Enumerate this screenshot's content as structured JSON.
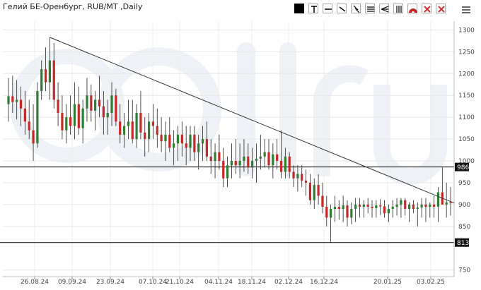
{
  "title": "Гелий БЕ-Оренбург, RUB/MT ,Daily",
  "toolbar": {
    "tools": [
      {
        "name": "color-swatch-tool"
      },
      {
        "name": "text-tool"
      },
      {
        "name": "horizontal-line-tool"
      },
      {
        "name": "trend-line-tool"
      },
      {
        "name": "ray-tool"
      },
      {
        "name": "channel-tool"
      },
      {
        "name": "fan-tool"
      },
      {
        "name": "grid-tool"
      },
      {
        "name": "arc-tool"
      },
      {
        "name": "delete-selected-tool"
      },
      {
        "name": "delete-all-tool"
      }
    ],
    "menu_icon": "hamburger-menu-icon"
  },
  "watermark": "oil.ru",
  "colors": {
    "bull": "#2e7d32",
    "bear": "#c62828",
    "wick": "#222222",
    "label_bg": "#111111"
  },
  "chart_data": {
    "type": "candlestick",
    "title": "Гелий БЕ-Оренбург, RUB/MT ,Daily",
    "ylim": [
      735,
      1320
    ],
    "y_ticks": [
      1300,
      1250,
      1200,
      1150,
      1100,
      1050,
      1000,
      950,
      900,
      850,
      750
    ],
    "x_ticks": [
      "26.08.24",
      "09.09.24",
      "23.09.24",
      "07.10.24",
      "21.10.24",
      "04.11.24",
      "18.11.24",
      "02.12.24",
      "16.12.24",
      "20.01.25",
      "03.02.25"
    ],
    "price_labels": [
      {
        "value": 986,
        "text": "986"
      },
      {
        "value": 813,
        "text": "813"
      }
    ],
    "trendline": {
      "from": {
        "candle": 10,
        "price": 1283
      },
      "to": {
        "candle": 108,
        "price": 903
      }
    },
    "candles": [
      {
        "o": 1130,
        "h": 1190,
        "l": 1090,
        "c": 1148
      },
      {
        "o": 1148,
        "h": 1195,
        "l": 1110,
        "c": 1135
      },
      {
        "o": 1135,
        "h": 1185,
        "l": 1095,
        "c": 1140
      },
      {
        "o": 1140,
        "h": 1170,
        "l": 1080,
        "c": 1120
      },
      {
        "o": 1120,
        "h": 1160,
        "l": 1060,
        "c": 1090
      },
      {
        "o": 1090,
        "h": 1140,
        "l": 1050,
        "c": 1070
      },
      {
        "o": 1070,
        "h": 1130,
        "l": 1000,
        "c": 1040
      },
      {
        "o": 1040,
        "h": 1180,
        "l": 1030,
        "c": 1160
      },
      {
        "o": 1160,
        "h": 1230,
        "l": 1140,
        "c": 1210
      },
      {
        "o": 1210,
        "h": 1260,
        "l": 1160,
        "c": 1180
      },
      {
        "o": 1180,
        "h": 1283,
        "l": 1140,
        "c": 1230
      },
      {
        "o": 1230,
        "h": 1270,
        "l": 1120,
        "c": 1140
      },
      {
        "o": 1140,
        "h": 1180,
        "l": 1080,
        "c": 1110
      },
      {
        "o": 1110,
        "h": 1150,
        "l": 1050,
        "c": 1070
      },
      {
        "o": 1070,
        "h": 1130,
        "l": 1040,
        "c": 1100
      },
      {
        "o": 1100,
        "h": 1150,
        "l": 1060,
        "c": 1080
      },
      {
        "o": 1080,
        "h": 1180,
        "l": 1050,
        "c": 1130
      },
      {
        "o": 1130,
        "h": 1170,
        "l": 1060,
        "c": 1075
      },
      {
        "o": 1075,
        "h": 1140,
        "l": 1040,
        "c": 1120
      },
      {
        "o": 1120,
        "h": 1190,
        "l": 1090,
        "c": 1150
      },
      {
        "o": 1150,
        "h": 1175,
        "l": 1090,
        "c": 1115
      },
      {
        "o": 1115,
        "h": 1160,
        "l": 1070,
        "c": 1140
      },
      {
        "o": 1140,
        "h": 1195,
        "l": 1100,
        "c": 1125
      },
      {
        "o": 1125,
        "h": 1160,
        "l": 1060,
        "c": 1100
      },
      {
        "o": 1100,
        "h": 1140,
        "l": 1060,
        "c": 1110
      },
      {
        "o": 1110,
        "h": 1180,
        "l": 1080,
        "c": 1150
      },
      {
        "o": 1150,
        "h": 1165,
        "l": 1080,
        "c": 1090
      },
      {
        "o": 1090,
        "h": 1130,
        "l": 1040,
        "c": 1060
      },
      {
        "o": 1060,
        "h": 1110,
        "l": 1030,
        "c": 1080
      },
      {
        "o": 1080,
        "h": 1140,
        "l": 1050,
        "c": 1090
      },
      {
        "o": 1090,
        "h": 1140,
        "l": 1040,
        "c": 1050
      },
      {
        "o": 1050,
        "h": 1130,
        "l": 1030,
        "c": 1110
      },
      {
        "o": 1110,
        "h": 1160,
        "l": 1050,
        "c": 1065
      },
      {
        "o": 1065,
        "h": 1100,
        "l": 1010,
        "c": 1050
      },
      {
        "o": 1050,
        "h": 1110,
        "l": 1020,
        "c": 1090
      },
      {
        "o": 1090,
        "h": 1130,
        "l": 1050,
        "c": 1080
      },
      {
        "o": 1080,
        "h": 1120,
        "l": 1030,
        "c": 1060
      },
      {
        "o": 1060,
        "h": 1100,
        "l": 1020,
        "c": 1045
      },
      {
        "o": 1045,
        "h": 1090,
        "l": 1000,
        "c": 1060
      },
      {
        "o": 1060,
        "h": 1100,
        "l": 1020,
        "c": 1030
      },
      {
        "o": 1030,
        "h": 1070,
        "l": 990,
        "c": 1040
      },
      {
        "o": 1040,
        "h": 1080,
        "l": 1000,
        "c": 1060
      },
      {
        "o": 1060,
        "h": 1090,
        "l": 1010,
        "c": 1040
      },
      {
        "o": 1040,
        "h": 1080,
        "l": 990,
        "c": 1030
      },
      {
        "o": 1030,
        "h": 1080,
        "l": 1000,
        "c": 1060
      },
      {
        "o": 1060,
        "h": 1080,
        "l": 1000,
        "c": 1020
      },
      {
        "o": 1020,
        "h": 1060,
        "l": 980,
        "c": 1040
      },
      {
        "o": 1040,
        "h": 1080,
        "l": 1000,
        "c": 1050
      },
      {
        "o": 1050,
        "h": 1090,
        "l": 1000,
        "c": 1010
      },
      {
        "o": 1010,
        "h": 1050,
        "l": 970,
        "c": 1000
      },
      {
        "o": 1000,
        "h": 1040,
        "l": 960,
        "c": 1020
      },
      {
        "o": 1020,
        "h": 1060,
        "l": 980,
        "c": 1000
      },
      {
        "o": 1000,
        "h": 1030,
        "l": 940,
        "c": 960
      },
      {
        "o": 960,
        "h": 1010,
        "l": 940,
        "c": 990
      },
      {
        "o": 990,
        "h": 1040,
        "l": 960,
        "c": 1000
      },
      {
        "o": 1000,
        "h": 1050,
        "l": 970,
        "c": 990
      },
      {
        "o": 990,
        "h": 1040,
        "l": 960,
        "c": 1000
      },
      {
        "o": 1000,
        "h": 1050,
        "l": 975,
        "c": 1010
      },
      {
        "o": 1010,
        "h": 1040,
        "l": 970,
        "c": 985
      },
      {
        "o": 985,
        "h": 1030,
        "l": 960,
        "c": 1000
      },
      {
        "o": 1000,
        "h": 1040,
        "l": 950,
        "c": 1005
      },
      {
        "o": 1005,
        "h": 1060,
        "l": 980,
        "c": 1010
      },
      {
        "o": 1010,
        "h": 1050,
        "l": 985,
        "c": 1020
      },
      {
        "o": 1020,
        "h": 1050,
        "l": 980,
        "c": 990
      },
      {
        "o": 990,
        "h": 1040,
        "l": 960,
        "c": 1015
      },
      {
        "o": 1015,
        "h": 1050,
        "l": 980,
        "c": 1000
      },
      {
        "o": 1000,
        "h": 1070,
        "l": 960,
        "c": 975
      },
      {
        "o": 975,
        "h": 1030,
        "l": 960,
        "c": 1010
      },
      {
        "o": 1010,
        "h": 1020,
        "l": 960,
        "c": 975
      },
      {
        "o": 975,
        "h": 990,
        "l": 940,
        "c": 960
      },
      {
        "o": 960,
        "h": 990,
        "l": 930,
        "c": 970
      },
      {
        "o": 970,
        "h": 990,
        "l": 940,
        "c": 955
      },
      {
        "o": 955,
        "h": 980,
        "l": 920,
        "c": 950
      },
      {
        "o": 950,
        "h": 970,
        "l": 900,
        "c": 910
      },
      {
        "o": 910,
        "h": 960,
        "l": 890,
        "c": 945
      },
      {
        "o": 945,
        "h": 970,
        "l": 900,
        "c": 920
      },
      {
        "o": 920,
        "h": 950,
        "l": 880,
        "c": 895
      },
      {
        "o": 895,
        "h": 920,
        "l": 850,
        "c": 870
      },
      {
        "o": 870,
        "h": 900,
        "l": 813,
        "c": 890
      },
      {
        "o": 890,
        "h": 920,
        "l": 860,
        "c": 895
      },
      {
        "o": 895,
        "h": 910,
        "l": 865,
        "c": 890
      },
      {
        "o": 890,
        "h": 920,
        "l": 860,
        "c": 898
      },
      {
        "o": 898,
        "h": 910,
        "l": 850,
        "c": 870
      },
      {
        "o": 870,
        "h": 905,
        "l": 855,
        "c": 890
      },
      {
        "o": 890,
        "h": 915,
        "l": 860,
        "c": 900
      },
      {
        "o": 900,
        "h": 915,
        "l": 870,
        "c": 895
      },
      {
        "o": 895,
        "h": 910,
        "l": 870,
        "c": 900
      },
      {
        "o": 900,
        "h": 915,
        "l": 880,
        "c": 895
      },
      {
        "o": 895,
        "h": 910,
        "l": 870,
        "c": 892
      },
      {
        "o": 892,
        "h": 910,
        "l": 870,
        "c": 898
      },
      {
        "o": 898,
        "h": 912,
        "l": 876,
        "c": 896
      },
      {
        "o": 896,
        "h": 910,
        "l": 870,
        "c": 880
      },
      {
        "o": 880,
        "h": 900,
        "l": 860,
        "c": 890
      },
      {
        "o": 890,
        "h": 910,
        "l": 870,
        "c": 895
      },
      {
        "o": 895,
        "h": 915,
        "l": 875,
        "c": 900
      },
      {
        "o": 900,
        "h": 915,
        "l": 870,
        "c": 910
      },
      {
        "o": 910,
        "h": 915,
        "l": 875,
        "c": 890
      },
      {
        "o": 890,
        "h": 905,
        "l": 860,
        "c": 900
      },
      {
        "o": 900,
        "h": 910,
        "l": 880,
        "c": 890
      },
      {
        "o": 890,
        "h": 905,
        "l": 850,
        "c": 893
      },
      {
        "o": 893,
        "h": 915,
        "l": 870,
        "c": 900
      },
      {
        "o": 900,
        "h": 915,
        "l": 860,
        "c": 895
      },
      {
        "o": 895,
        "h": 905,
        "l": 870,
        "c": 900
      },
      {
        "o": 900,
        "h": 920,
        "l": 870,
        "c": 895
      },
      {
        "o": 895,
        "h": 940,
        "l": 860,
        "c": 928
      },
      {
        "o": 928,
        "h": 986,
        "l": 900,
        "c": 900
      },
      {
        "o": 900,
        "h": 950,
        "l": 870,
        "c": 905
      },
      {
        "o": 905,
        "h": 940,
        "l": 875,
        "c": 903
      }
    ]
  }
}
